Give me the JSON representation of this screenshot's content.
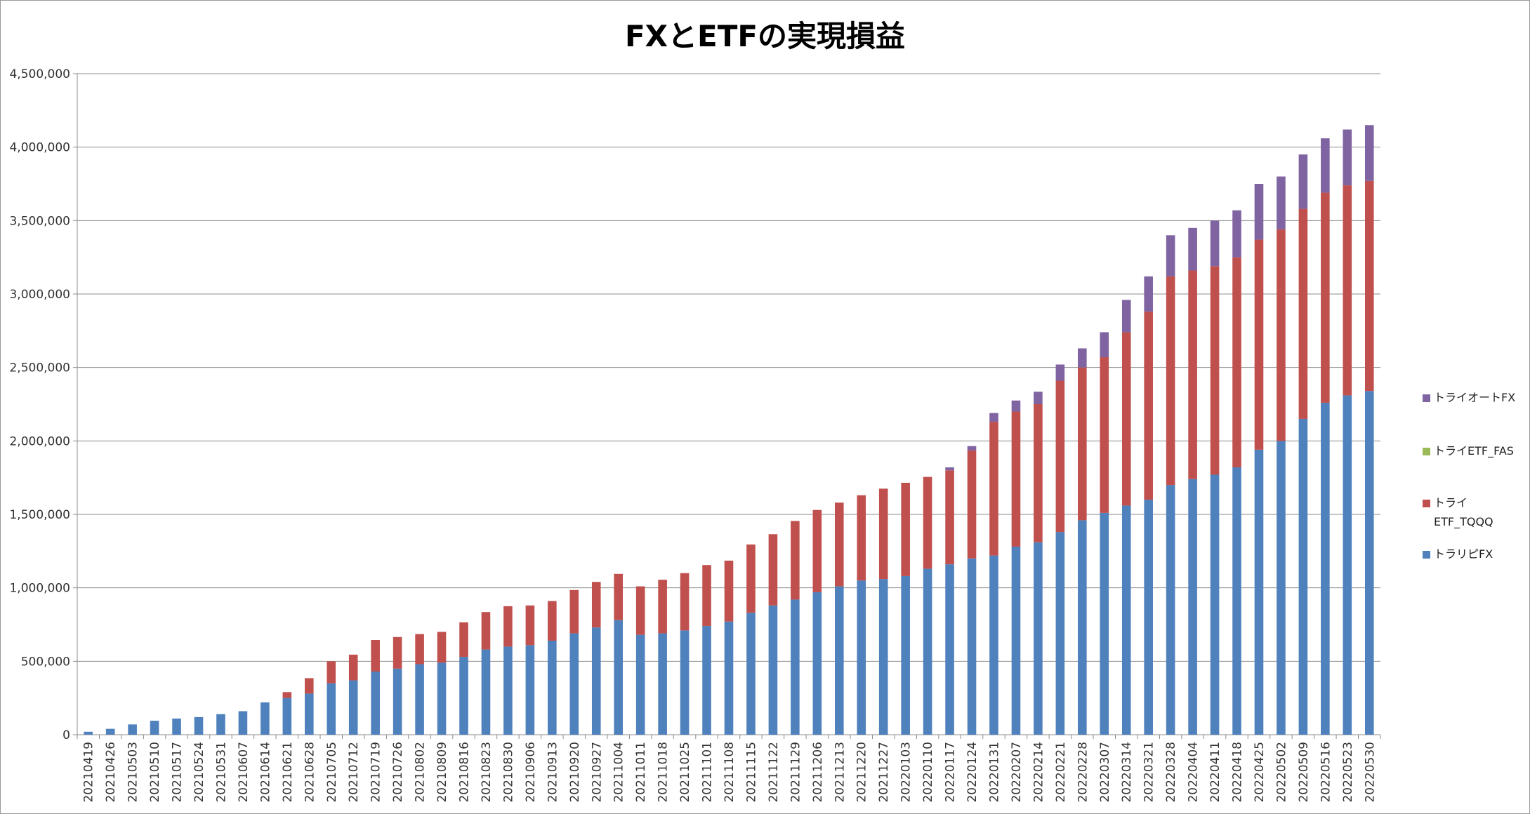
{
  "chart_data": {
    "type": "bar",
    "stacked": true,
    "title": "FXとETFの実現損益",
    "xlabel": "",
    "ylabel": "",
    "ylim": [
      0,
      4500000
    ],
    "yticks": [
      0,
      500000,
      1000000,
      1500000,
      2000000,
      2500000,
      3000000,
      3500000,
      4000000,
      4500000
    ],
    "ytick_labels": [
      "0",
      "500,000",
      "1,000,000",
      "1,500,000",
      "2,000,000",
      "2,500,000",
      "3,000,000",
      "3,500,000",
      "4,000,000",
      "4,500,000"
    ],
    "grid": true,
    "legend_position": "right",
    "categories": [
      "20210419",
      "20210426",
      "20210503",
      "20210510",
      "20210517",
      "20210524",
      "20210531",
      "20210607",
      "20210614",
      "20210621",
      "20210628",
      "20210705",
      "20210712",
      "20210719",
      "20210726",
      "20210802",
      "20210809",
      "20210816",
      "20210823",
      "20210830",
      "20210906",
      "20210913",
      "20210920",
      "20210927",
      "20211004",
      "20211011",
      "20211018",
      "20211025",
      "20211101",
      "20211108",
      "20211115",
      "20211122",
      "20211129",
      "20211206",
      "20211213",
      "20211220",
      "20211227",
      "20220103",
      "20220110",
      "20220117",
      "20220124",
      "20220131",
      "20220207",
      "20220214",
      "20220221",
      "20220228",
      "20220307",
      "20220314",
      "20220321",
      "20220328",
      "20220404",
      "20220411",
      "20220418",
      "20220425",
      "20220502",
      "20220509",
      "20220516",
      "20220523",
      "20220530"
    ],
    "series": [
      {
        "name": "トラリピFX",
        "color": "#4f81bd",
        "values": [
          20000,
          40000,
          70000,
          95000,
          110000,
          120000,
          140000,
          160000,
          220000,
          250000,
          280000,
          350000,
          370000,
          430000,
          450000,
          480000,
          490000,
          530000,
          580000,
          600000,
          610000,
          640000,
          690000,
          730000,
          780000,
          680000,
          690000,
          710000,
          740000,
          770000,
          830000,
          880000,
          920000,
          970000,
          1010000,
          1050000,
          1060000,
          1080000,
          1130000,
          1160000,
          1200000,
          1220000,
          1280000,
          1310000,
          1380000,
          1460000,
          1510000,
          1560000,
          1600000,
          1700000,
          1740000,
          1770000,
          1820000,
          1940000,
          2000000,
          2150000,
          2260000,
          2310000,
          2340000
        ]
      },
      {
        "name": "トライ ETF_TQQQ",
        "color": "#c0504d",
        "values": [
          0,
          0,
          0,
          0,
          0,
          0,
          0,
          0,
          0,
          40000,
          105000,
          150000,
          175000,
          215000,
          215000,
          205000,
          210000,
          235000,
          255000,
          275000,
          270000,
          270000,
          295000,
          310000,
          315000,
          330000,
          365000,
          390000,
          415000,
          415000,
          465000,
          485000,
          535000,
          560000,
          570000,
          580000,
          615000,
          635000,
          625000,
          640000,
          735000,
          910000,
          920000,
          940000,
          1030000,
          1040000,
          1060000,
          1180000,
          1280000,
          1420000,
          1420000,
          1420000,
          1430000,
          1430000,
          1440000,
          1430000,
          1430000,
          1430000,
          1430000
        ]
      },
      {
        "name": "トライETF_FAS",
        "color": "#9bbb59",
        "values": [
          0,
          0,
          0,
          0,
          0,
          0,
          0,
          0,
          0,
          0,
          0,
          0,
          0,
          0,
          0,
          0,
          0,
          0,
          0,
          0,
          0,
          0,
          0,
          0,
          0,
          0,
          0,
          0,
          0,
          0,
          0,
          0,
          0,
          0,
          0,
          0,
          0,
          0,
          0,
          0,
          0,
          0,
          0,
          0,
          0,
          0,
          0,
          0,
          0,
          0,
          0,
          0,
          0,
          0,
          0,
          0,
          0,
          0,
          0
        ]
      },
      {
        "name": "トライオートFX",
        "color": "#8064a2",
        "values": [
          0,
          0,
          0,
          0,
          0,
          0,
          0,
          0,
          0,
          0,
          0,
          0,
          0,
          0,
          0,
          0,
          0,
          0,
          0,
          0,
          0,
          0,
          0,
          0,
          0,
          0,
          0,
          0,
          0,
          0,
          0,
          0,
          0,
          0,
          0,
          0,
          0,
          0,
          0,
          20000,
          30000,
          60000,
          75000,
          85000,
          110000,
          130000,
          170000,
          220000,
          240000,
          280000,
          290000,
          310000,
          320000,
          380000,
          360000,
          370000,
          370000,
          380000,
          380000
        ]
      }
    ]
  },
  "legend": [
    {
      "label": "トライオートFX",
      "color": "#8064a2"
    },
    {
      "label": "トライETF_FAS",
      "color": "#9bbb59"
    },
    {
      "label": "トライ\nETF_TQQQ",
      "color": "#c0504d"
    },
    {
      "label": "トラリピFX",
      "color": "#4f81bd"
    }
  ]
}
